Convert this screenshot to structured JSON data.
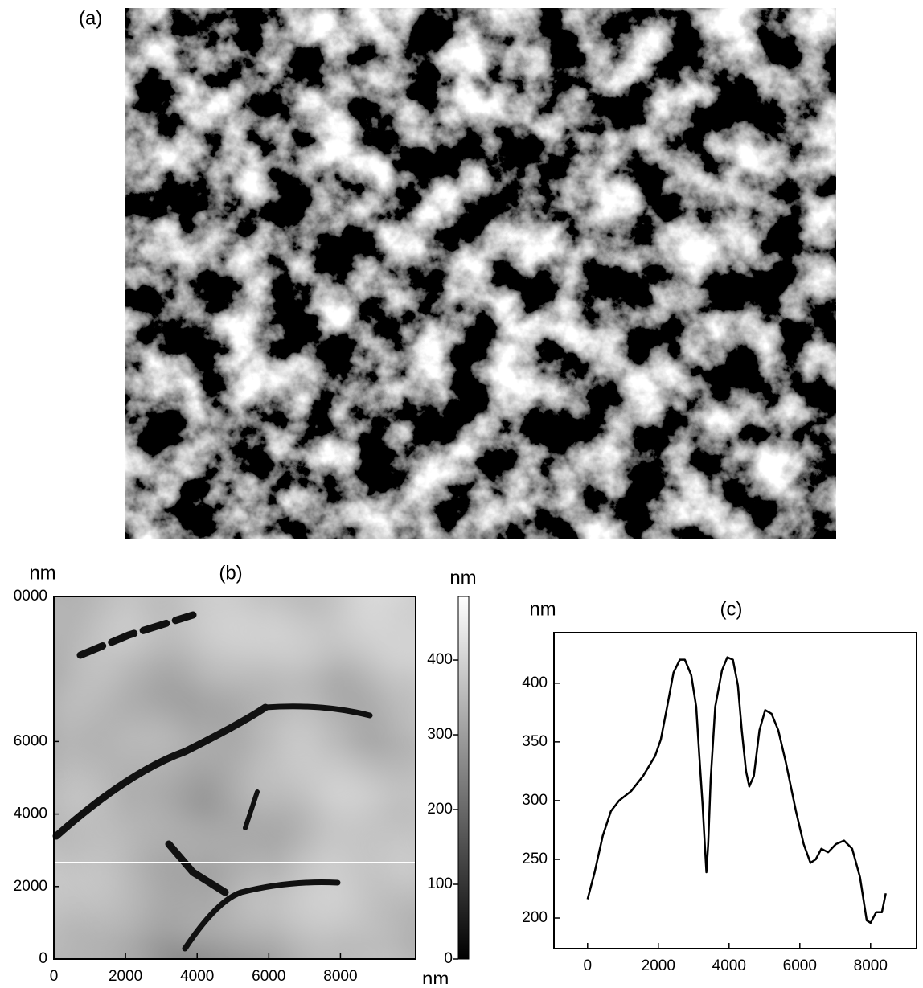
{
  "chart_data": [
    {
      "type": "image",
      "label": "(a)"
    },
    {
      "type": "heatmap",
      "label": "(b)",
      "x_label": "nm",
      "y_label": "nm",
      "colorbar_label": "nm",
      "xlim": [
        0,
        10100
      ],
      "ylim": [
        0,
        10000
      ],
      "xticks": [
        0,
        2000,
        4000,
        6000,
        8000
      ],
      "yticks": [
        0,
        2000,
        4000,
        6000,
        {
          "value": 10000,
          "label": "0000"
        }
      ],
      "zlim": [
        0,
        485
      ],
      "zticks": [
        0,
        100,
        200,
        300,
        400
      ]
    },
    {
      "type": "line",
      "label": "(c)",
      "x_label": "nm",
      "y_label": "nm",
      "color": "#000000",
      "xlim": [
        -950,
        9300
      ],
      "ylim": [
        174,
        443
      ],
      "xticks": [
        0,
        2000,
        4000,
        6000,
        8000
      ],
      "yticks": [
        200,
        250,
        300,
        350,
        400
      ],
      "x": [
        0,
        200,
        430,
        660,
        890,
        1230,
        1570,
        1910,
        2070,
        2250,
        2430,
        2610,
        2750,
        2930,
        3070,
        3160,
        3250,
        3320,
        3360,
        3410,
        3480,
        3610,
        3800,
        3950,
        4110,
        4250,
        4360,
        4480,
        4570,
        4700,
        4860,
        5020,
        5200,
        5390,
        5610,
        5890,
        6110,
        6300,
        6450,
        6610,
        6800,
        7020,
        7250,
        7480,
        7700,
        7890,
        8000,
        8160,
        8320,
        8430
      ],
      "values": [
        216,
        239,
        270,
        291,
        300,
        308,
        321,
        338,
        352,
        380,
        409,
        420,
        420,
        407,
        380,
        338,
        297,
        259,
        239,
        263,
        318,
        380,
        411,
        422,
        420,
        398,
        360,
        325,
        312,
        321,
        360,
        377,
        374,
        360,
        332,
        291,
        263,
        247,
        250,
        259,
        256,
        263,
        266,
        259,
        235,
        198,
        196,
        205,
        205,
        221
      ]
    }
  ]
}
